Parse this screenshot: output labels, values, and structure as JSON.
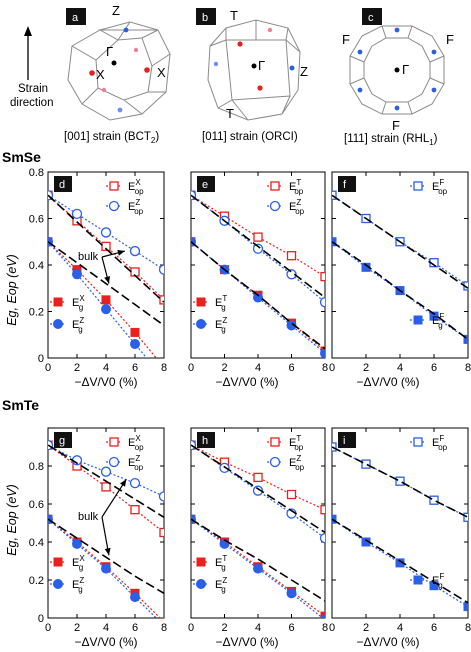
{
  "bz_panels": [
    {
      "tag": "a",
      "caption_main": "[001] strain (BCT",
      "caption_sub": "2",
      "caption_end": ")",
      "points": [
        "Z",
        "Γ",
        "X",
        "X"
      ]
    },
    {
      "tag": "b",
      "caption_main": "[011] strain (ORCI)",
      "caption_sub": "",
      "caption_end": "",
      "points": [
        "T",
        "Γ",
        "Z",
        "T"
      ]
    },
    {
      "tag": "c",
      "caption_main": "[111] strain (RHL",
      "caption_sub": "1",
      "caption_end": ")",
      "points": [
        "F",
        "F",
        "Γ",
        "F"
      ]
    }
  ],
  "strain_label_line1": "Strain",
  "strain_label_line2": "direction",
  "rows": [
    {
      "name": "SmSe",
      "panel_tags": [
        "d",
        "e",
        "f"
      ]
    },
    {
      "name": "SmTe",
      "panel_tags": [
        "g",
        "h",
        "i"
      ]
    }
  ],
  "annotation": "bulk",
  "ylabel": "Eg, Eop (eV)",
  "xlabel": "−ΔV/V0 (%)",
  "colors": {
    "red": "#e8201e",
    "blue": "#2a5fe8",
    "bulk": "#000000",
    "tag_bg": "#111111"
  },
  "chart_data": [
    {
      "type": "line",
      "title": "d",
      "xlabel": "−ΔV/V0 (%)",
      "ylabel": "Eg, Eop (eV)",
      "x": [
        0,
        2,
        4,
        6,
        8
      ],
      "xlim": [
        0,
        8
      ],
      "ylim": [
        0,
        0.8
      ],
      "yticks": [
        0,
        0.2,
        0.4,
        0.6,
        0.8
      ],
      "legend": [
        {
          "label": "E",
          "sup": "X",
          "sub": "op",
          "marker": "open-square",
          "color": "red"
        },
        {
          "label": "E",
          "sup": "Z",
          "sub": "op",
          "marker": "open-circle",
          "color": "blue"
        },
        {
          "label": "E",
          "sup": "X",
          "sub": "g",
          "marker": "filled-square",
          "color": "red"
        },
        {
          "label": "E",
          "sup": "Z",
          "sub": "g",
          "marker": "filled-circle",
          "color": "blue"
        }
      ],
      "series": [
        {
          "name": "EXop",
          "color": "red",
          "marker": "open-square",
          "values": [
            0.7,
            0.59,
            0.48,
            0.37,
            0.25
          ]
        },
        {
          "name": "EZop",
          "color": "blue",
          "marker": "open-circle",
          "values": [
            0.7,
            0.62,
            0.54,
            0.46,
            0.38
          ]
        },
        {
          "name": "EXg",
          "color": "red",
          "marker": "filled-square",
          "values": [
            0.5,
            0.38,
            0.25,
            0.11,
            -0.04
          ]
        },
        {
          "name": "EZg",
          "color": "blue",
          "marker": "filled-circle",
          "values": [
            0.5,
            0.36,
            0.21,
            0.06,
            -0.09
          ]
        },
        {
          "name": "bulk",
          "color": "bulk",
          "marker": "none",
          "dash": true,
          "values": [
            0.7,
            0.585,
            0.47,
            0.355,
            0.24
          ]
        },
        {
          "name": "bulk",
          "color": "bulk",
          "marker": "none",
          "dash": true,
          "values": [
            0.5,
            0.41,
            0.32,
            0.23,
            0.14
          ]
        }
      ]
    },
    {
      "type": "line",
      "title": "e",
      "xlabel": "−ΔV/V0 (%)",
      "ylabel": "Eg, Eop (eV)",
      "x": [
        0,
        2,
        4,
        6,
        8
      ],
      "xlim": [
        0,
        8
      ],
      "ylim": [
        0,
        0.8
      ],
      "yticks": [
        0,
        0.2,
        0.4,
        0.6,
        0.8
      ],
      "legend": [
        {
          "label": "E",
          "sup": "T",
          "sub": "op",
          "marker": "open-square",
          "color": "red"
        },
        {
          "label": "E",
          "sup": "Z",
          "sub": "op",
          "marker": "open-circle",
          "color": "blue"
        },
        {
          "label": "E",
          "sup": "T",
          "sub": "g",
          "marker": "filled-square",
          "color": "red"
        },
        {
          "label": "E",
          "sup": "Z",
          "sub": "g",
          "marker": "filled-circle",
          "color": "blue"
        }
      ],
      "series": [
        {
          "name": "ETop",
          "color": "red",
          "marker": "open-square",
          "values": [
            0.7,
            0.61,
            0.52,
            0.44,
            0.35
          ]
        },
        {
          "name": "EZop",
          "color": "blue",
          "marker": "open-circle",
          "values": [
            0.7,
            0.59,
            0.47,
            0.36,
            0.24
          ]
        },
        {
          "name": "ETg",
          "color": "red",
          "marker": "filled-square",
          "values": [
            0.5,
            0.38,
            0.27,
            0.15,
            0.03
          ]
        },
        {
          "name": "EZg",
          "color": "blue",
          "marker": "filled-circle",
          "values": [
            0.5,
            0.38,
            0.26,
            0.14,
            0.02
          ]
        },
        {
          "name": "bulk",
          "color": "bulk",
          "marker": "none",
          "dash": true,
          "values": [
            0.7,
            0.59,
            0.48,
            0.37,
            0.26
          ]
        },
        {
          "name": "bulk",
          "color": "bulk",
          "marker": "none",
          "dash": true,
          "values": [
            0.5,
            0.38,
            0.27,
            0.15,
            0.04
          ]
        }
      ]
    },
    {
      "type": "line",
      "title": "f",
      "xlabel": "−ΔV/V0 (%)",
      "ylabel": "Eg, Eop (eV)",
      "x": [
        0,
        2,
        4,
        6,
        8
      ],
      "xlim": [
        0,
        8
      ],
      "ylim": [
        0,
        0.8
      ],
      "yticks": [
        0,
        0.2,
        0.4,
        0.6,
        0.8
      ],
      "legend": [
        {
          "label": "E",
          "sup": "F",
          "sub": "op",
          "marker": "open-square",
          "color": "blue"
        },
        {
          "label": "E",
          "sup": "F",
          "sub": "g",
          "marker": "filled-square",
          "color": "blue"
        }
      ],
      "series": [
        {
          "name": "EFop",
          "color": "blue",
          "marker": "open-square",
          "values": [
            0.7,
            0.6,
            0.5,
            0.41,
            0.31
          ]
        },
        {
          "name": "EFg",
          "color": "blue",
          "marker": "filled-square",
          "values": [
            0.5,
            0.39,
            0.29,
            0.18,
            0.08
          ]
        },
        {
          "name": "bulk",
          "color": "bulk",
          "marker": "none",
          "dash": true,
          "values": [
            0.7,
            0.6,
            0.5,
            0.4,
            0.3
          ]
        },
        {
          "name": "bulk",
          "color": "bulk",
          "marker": "none",
          "dash": true,
          "values": [
            0.5,
            0.4,
            0.29,
            0.19,
            0.08
          ]
        }
      ]
    },
    {
      "type": "line",
      "title": "g",
      "xlabel": "−ΔV/V0 (%)",
      "ylabel": "Eg, Eop (eV)",
      "x": [
        0,
        2,
        4,
        6,
        8
      ],
      "xlim": [
        0,
        8
      ],
      "ylim": [
        0,
        1.0
      ],
      "yticks": [
        0,
        0.2,
        0.4,
        0.6,
        0.8
      ],
      "legend": [
        {
          "label": "E",
          "sup": "X",
          "sub": "op",
          "marker": "open-square",
          "color": "red"
        },
        {
          "label": "E",
          "sup": "Z",
          "sub": "op",
          "marker": "open-circle",
          "color": "blue"
        },
        {
          "label": "E",
          "sup": "X",
          "sub": "g",
          "marker": "filled-square",
          "color": "red"
        },
        {
          "label": "E",
          "sup": "Z",
          "sub": "g",
          "marker": "filled-circle",
          "color": "blue"
        }
      ],
      "series": [
        {
          "name": "EXop",
          "color": "red",
          "marker": "open-square",
          "values": [
            0.91,
            0.8,
            0.69,
            0.57,
            0.45
          ]
        },
        {
          "name": "EZop",
          "color": "blue",
          "marker": "open-circle",
          "values": [
            0.91,
            0.83,
            0.77,
            0.71,
            0.64
          ]
        },
        {
          "name": "EXg",
          "color": "red",
          "marker": "filled-square",
          "values": [
            0.52,
            0.4,
            0.27,
            0.13,
            -0.02
          ]
        },
        {
          "name": "EZg",
          "color": "blue",
          "marker": "filled-circle",
          "values": [
            0.52,
            0.39,
            0.26,
            0.11,
            -0.04
          ]
        },
        {
          "name": "bulk",
          "color": "bulk",
          "marker": "none",
          "dash": true,
          "values": [
            0.91,
            0.815,
            0.72,
            0.625,
            0.53
          ]
        },
        {
          "name": "bulk",
          "color": "bulk",
          "marker": "none",
          "dash": true,
          "values": [
            0.52,
            0.42,
            0.32,
            0.22,
            0.13
          ]
        }
      ]
    },
    {
      "type": "line",
      "title": "h",
      "xlabel": "−ΔV/V0 (%)",
      "ylabel": "Eg, Eop (eV)",
      "x": [
        0,
        2,
        4,
        6,
        8
      ],
      "xlim": [
        0,
        8
      ],
      "ylim": [
        0,
        1.0
      ],
      "yticks": [
        0,
        0.2,
        0.4,
        0.6,
        0.8
      ],
      "legend": [
        {
          "label": "E",
          "sup": "T",
          "sub": "op",
          "marker": "open-square",
          "color": "red"
        },
        {
          "label": "E",
          "sup": "Z",
          "sub": "op",
          "marker": "open-circle",
          "color": "blue"
        },
        {
          "label": "E",
          "sup": "T",
          "sub": "g",
          "marker": "filled-square",
          "color": "red"
        },
        {
          "label": "E",
          "sup": "Z",
          "sub": "g",
          "marker": "filled-circle",
          "color": "blue"
        }
      ],
      "series": [
        {
          "name": "ETop",
          "color": "red",
          "marker": "open-square",
          "values": [
            0.91,
            0.82,
            0.74,
            0.65,
            0.57
          ]
        },
        {
          "name": "EZop",
          "color": "blue",
          "marker": "open-circle",
          "values": [
            0.91,
            0.79,
            0.67,
            0.55,
            0.42
          ]
        },
        {
          "name": "ETg",
          "color": "red",
          "marker": "filled-square",
          "values": [
            0.52,
            0.4,
            0.27,
            0.14,
            0.01
          ]
        },
        {
          "name": "EZg",
          "color": "blue",
          "marker": "filled-circle",
          "values": [
            0.52,
            0.39,
            0.26,
            0.13,
            -0.01
          ]
        },
        {
          "name": "bulk",
          "color": "bulk",
          "marker": "none",
          "dash": true,
          "values": [
            0.91,
            0.795,
            0.68,
            0.565,
            0.45
          ]
        },
        {
          "name": "bulk",
          "color": "bulk",
          "marker": "none",
          "dash": true,
          "values": [
            0.52,
            0.41,
            0.31,
            0.2,
            0.09
          ]
        }
      ]
    },
    {
      "type": "line",
      "title": "i",
      "xlabel": "−ΔV/V0 (%)",
      "ylabel": "Eg, Eop (eV)",
      "x": [
        0,
        2,
        4,
        6,
        8
      ],
      "xlim": [
        0,
        8
      ],
      "ylim": [
        0,
        1.0
      ],
      "yticks": [
        0,
        0.2,
        0.4,
        0.6,
        0.8
      ],
      "legend": [
        {
          "label": "E",
          "sup": "F",
          "sub": "op",
          "marker": "open-square",
          "color": "blue"
        },
        {
          "label": "E",
          "sup": "F",
          "sub": "g",
          "marker": "filled-square",
          "color": "blue"
        }
      ],
      "series": [
        {
          "name": "EFop",
          "color": "blue",
          "marker": "open-square",
          "values": [
            0.9,
            0.81,
            0.72,
            0.62,
            0.53
          ]
        },
        {
          "name": "EFg",
          "color": "blue",
          "marker": "filled-square",
          "values": [
            0.52,
            0.4,
            0.29,
            0.17,
            0.06
          ]
        },
        {
          "name": "bulk",
          "color": "bulk",
          "marker": "none",
          "dash": true,
          "values": [
            0.9,
            0.81,
            0.72,
            0.62,
            0.53
          ]
        },
        {
          "name": "bulk",
          "color": "bulk",
          "marker": "none",
          "dash": true,
          "values": [
            0.52,
            0.41,
            0.3,
            0.19,
            0.08
          ]
        }
      ]
    }
  ]
}
